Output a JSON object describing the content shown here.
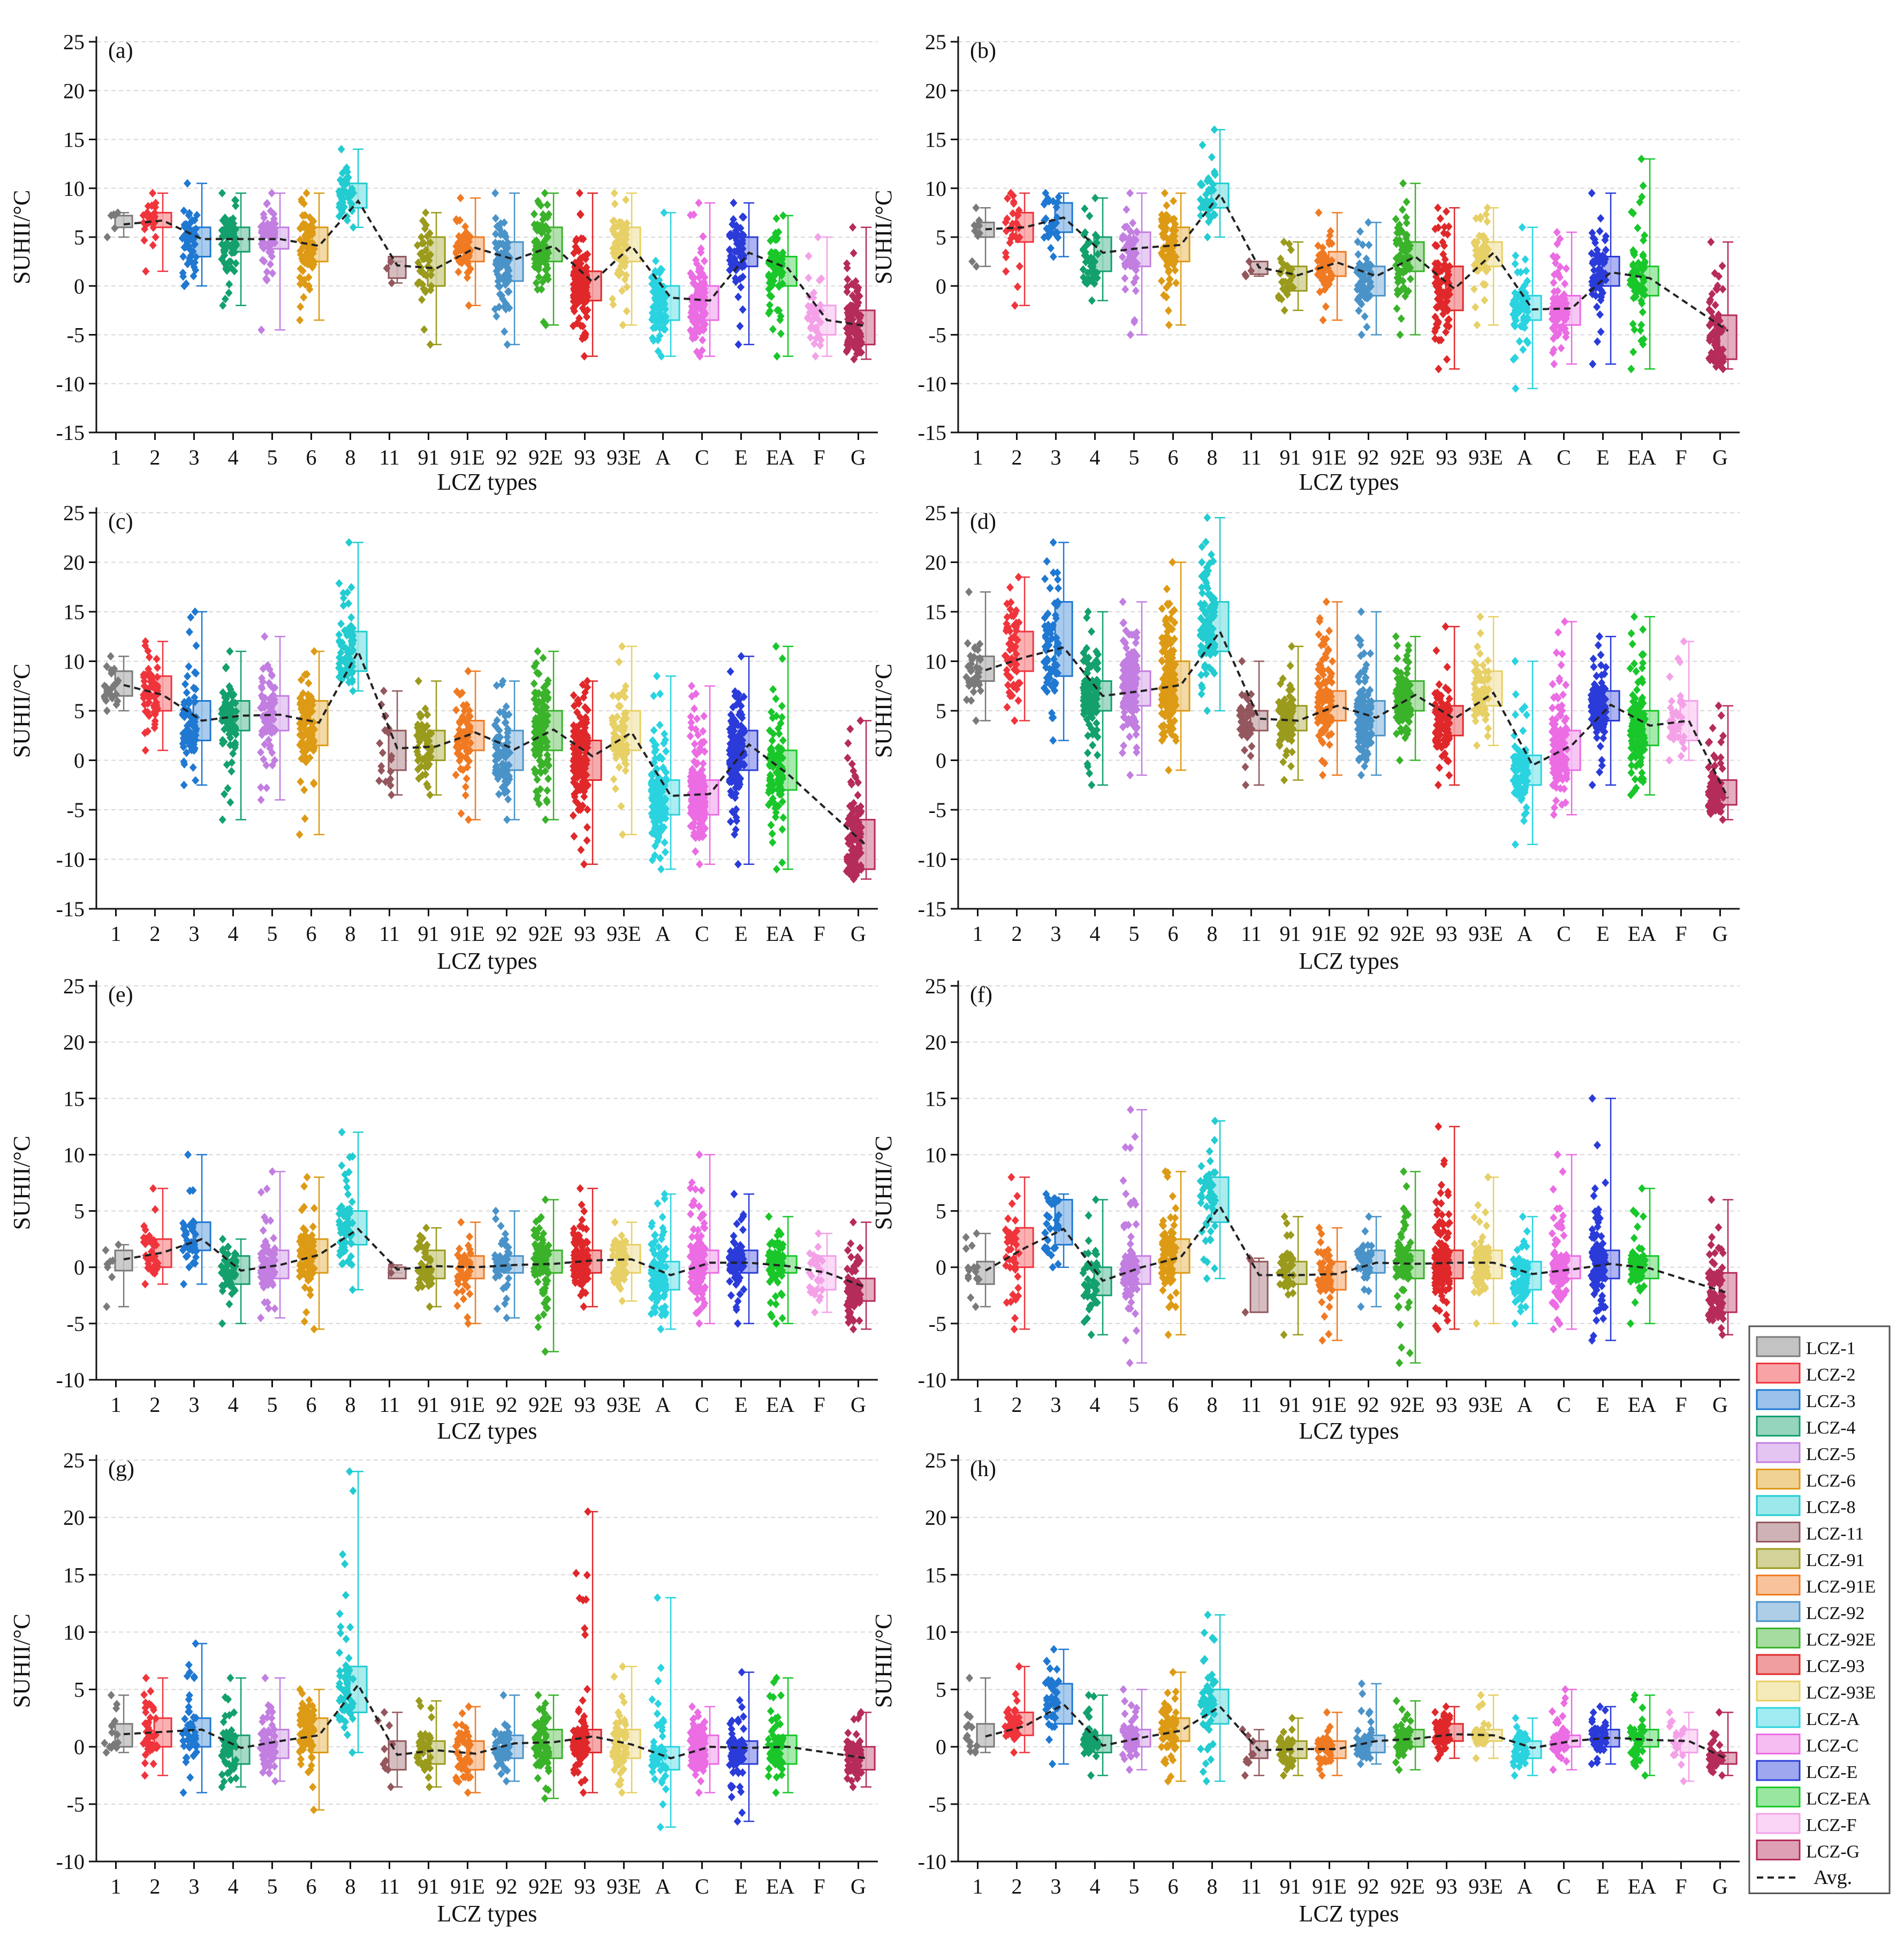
{
  "figure": {
    "y_axis_label": "SUHII/°C",
    "x_axis_label": "LCZ types",
    "categories": [
      "1",
      "2",
      "3",
      "4",
      "5",
      "6",
      "8",
      "11",
      "91",
      "91E",
      "92",
      "92E",
      "93",
      "93E",
      "A",
      "C",
      "E",
      "EA",
      "F",
      "G"
    ]
  },
  "colors": {
    "1": "#7a7a7a",
    "2": "#f0343c",
    "3": "#1f78d1",
    "4": "#13a06c",
    "5": "#c27ee0",
    "6": "#dd9a14",
    "8": "#22ccd0",
    "11": "#93575d",
    "91": "#9a9a1c",
    "91E": "#f07a22",
    "92": "#4a93c9",
    "92E": "#3ab22a",
    "93": "#e0282a",
    "93E": "#e7d065",
    "A": "#2ad3e0",
    "C": "#eb6ce3",
    "E": "#2a3bd9",
    "EA": "#19c72a",
    "F": "#f4a1e8",
    "G": "#b52b5a"
  },
  "legend": {
    "items": [
      "LCZ-1",
      "LCZ-2",
      "LCZ-3",
      "LCZ-4",
      "LCZ-5",
      "LCZ-6",
      "LCZ-8",
      "LCZ-11",
      "LCZ-91",
      "LCZ-91E",
      "LCZ-92",
      "LCZ-92E",
      "LCZ-93",
      "LCZ-93E",
      "LCZ-A",
      "LCZ-C",
      "LCZ-E",
      "LCZ-EA",
      "LCZ-F",
      "LCZ-G"
    ],
    "avg_label": "Avg."
  },
  "chart_data": [
    {
      "type": "box-scatter",
      "title": "(a)",
      "ylim": [
        -15,
        25
      ],
      "yticks": [
        -15,
        -10,
        -5,
        0,
        5,
        10,
        15,
        20,
        25
      ],
      "xlabel": "LCZ types",
      "ylabel": "SUHII/°C",
      "avg": [
        6.3,
        6.7,
        4.8,
        4.8,
        4.8,
        4.1,
        8.7,
        2.1,
        1.8,
        3.9,
        2.7,
        4.1,
        0.4,
        4.1,
        -1.2,
        -1.5,
        3.4,
        1.8,
        -3.5,
        -4.1
      ],
      "q1": [
        6.0,
        6.0,
        3.0,
        3.5,
        3.8,
        2.5,
        8.0,
        0.8,
        0.0,
        2.5,
        0.5,
        2.5,
        -1.5,
        2.5,
        -3.5,
        -3.5,
        2.0,
        0.0,
        -5.0,
        -6.0
      ],
      "q3": [
        7.2,
        7.5,
        6.0,
        6.0,
        6.0,
        6.0,
        10.5,
        3.0,
        5.0,
        5.0,
        4.5,
        6.0,
        1.5,
        6.0,
        0.0,
        0.0,
        5.0,
        3.0,
        -2.0,
        -2.5
      ],
      "min": [
        5.0,
        1.5,
        0.0,
        -2.0,
        -4.5,
        -3.5,
        6.0,
        0.3,
        -6.0,
        -2.0,
        -6.0,
        -4.0,
        -7.2,
        -4.0,
        -7.2,
        -7.2,
        -6.0,
        -7.2,
        -7.2,
        -7.5
      ],
      "max": [
        7.5,
        9.5,
        10.5,
        9.5,
        9.5,
        9.5,
        14.0,
        2.5,
        7.5,
        9.0,
        9.5,
        9.5,
        9.5,
        9.5,
        7.5,
        8.5,
        8.5,
        7.2,
        5.0,
        6.0
      ],
      "count": [
        6,
        30,
        60,
        70,
        70,
        80,
        50,
        3,
        40,
        55,
        90,
        90,
        140,
        70,
        90,
        130,
        80,
        70,
        40,
        100
      ]
    },
    {
      "type": "box-scatter",
      "title": "(b)",
      "ylim": [
        -15,
        25
      ],
      "yticks": [
        -15,
        -10,
        -5,
        0,
        5,
        10,
        15,
        20,
        25
      ],
      "xlabel": "LCZ types",
      "ylabel": "SUHII/°C",
      "avg": [
        5.8,
        6.0,
        7.0,
        3.4,
        3.9,
        4.2,
        9.4,
        1.9,
        1.1,
        2.4,
        1.0,
        3.0,
        -0.3,
        3.4,
        -2.4,
        -2.3,
        1.4,
        0.8,
        null,
        -4.6
      ],
      "q1": [
        5.0,
        4.5,
        5.5,
        1.5,
        2.0,
        2.5,
        8.0,
        1.2,
        -0.5,
        1.0,
        -1.0,
        1.5,
        -2.5,
        2.0,
        -3.5,
        -4.0,
        0.0,
        -1.0,
        null,
        -7.5
      ],
      "q3": [
        6.5,
        7.5,
        8.5,
        5.0,
        5.5,
        6.0,
        10.5,
        2.5,
        2.0,
        3.5,
        2.0,
        4.5,
        2.0,
        4.5,
        -1.0,
        -1.0,
        3.0,
        2.0,
        null,
        -3.0
      ],
      "min": [
        2.0,
        -2.0,
        3.0,
        -1.5,
        -5.0,
        -4.0,
        5.0,
        1.0,
        -2.5,
        -3.5,
        -5.0,
        -5.0,
        -8.5,
        -4.0,
        -10.5,
        -8.0,
        -8.0,
        -8.5,
        null,
        -8.5
      ],
      "max": [
        8.0,
        9.5,
        9.5,
        9.0,
        9.5,
        9.5,
        16.0,
        2.5,
        4.5,
        7.5,
        6.5,
        10.5,
        8.0,
        8.0,
        6.0,
        5.5,
        9.5,
        13.0,
        null,
        4.5
      ],
      "count": [
        10,
        30,
        30,
        50,
        60,
        80,
        40,
        4,
        30,
        50,
        60,
        80,
        100,
        60,
        70,
        90,
        70,
        70,
        0,
        70
      ]
    },
    {
      "type": "box-scatter",
      "title": "(c)",
      "ylim": [
        -15,
        25
      ],
      "yticks": [
        -15,
        -10,
        -5,
        0,
        5,
        10,
        15,
        20,
        25
      ],
      "xlabel": "LCZ types",
      "ylabel": "SUHII/°C",
      "avg": [
        7.6,
        6.6,
        4.0,
        4.5,
        4.6,
        3.8,
        11.0,
        1.2,
        1.4,
        2.8,
        1.1,
        3.1,
        0.4,
        2.8,
        -3.6,
        -3.4,
        1.6,
        -1.4,
        null,
        -8.6
      ],
      "q1": [
        6.5,
        5.0,
        2.0,
        3.0,
        3.0,
        1.5,
        9.0,
        -1.0,
        0.0,
        1.0,
        -1.0,
        1.0,
        -2.0,
        1.0,
        -5.5,
        -5.5,
        -1.0,
        -3.0,
        null,
        -11.0
      ],
      "q3": [
        9.0,
        8.5,
        6.0,
        6.0,
        6.5,
        6.0,
        13.0,
        3.0,
        3.0,
        4.0,
        3.0,
        5.0,
        2.0,
        5.0,
        -2.0,
        -2.0,
        3.0,
        1.0,
        null,
        -6.0
      ],
      "min": [
        5.0,
        1.0,
        -2.5,
        -6.0,
        -4.0,
        -7.5,
        7.0,
        -3.5,
        -3.5,
        -6.0,
        -6.0,
        -6.0,
        -10.5,
        -7.5,
        -11.0,
        -10.5,
        -10.5,
        -11.0,
        null,
        -12.0
      ],
      "max": [
        10.5,
        12.0,
        15.0,
        11.0,
        12.5,
        11.0,
        22.0,
        7.0,
        8.0,
        9.0,
        8.0,
        11.0,
        8.0,
        11.5,
        8.5,
        7.5,
        10.5,
        11.5,
        null,
        4.0
      ],
      "count": [
        25,
        60,
        70,
        80,
        90,
        100,
        70,
        20,
        50,
        70,
        80,
        130,
        150,
        80,
        150,
        200,
        160,
        110,
        0,
        120
      ]
    },
    {
      "type": "box-scatter",
      "title": "(d)",
      "ylim": [
        -15,
        25
      ],
      "yticks": [
        -15,
        -10,
        -5,
        0,
        5,
        10,
        15,
        20,
        25
      ],
      "xlabel": "LCZ types",
      "ylabel": "SUHII/°C",
      "avg": [
        9.1,
        10.4,
        11.4,
        6.5,
        7.0,
        7.6,
        13.0,
        4.2,
        4.0,
        5.5,
        4.3,
        6.6,
        4.2,
        6.8,
        -0.5,
        1.5,
        5.6,
        3.5,
        4.0,
        -3.8
      ],
      "q1": [
        8.0,
        9.0,
        8.5,
        5.0,
        5.5,
        5.0,
        11.0,
        3.0,
        3.0,
        4.0,
        2.5,
        5.0,
        2.5,
        5.5,
        -2.5,
        -1.0,
        4.0,
        1.5,
        2.0,
        -4.5
      ],
      "q3": [
        10.5,
        13.0,
        16.0,
        8.0,
        9.0,
        10.0,
        16.0,
        5.0,
        5.5,
        7.0,
        6.0,
        8.0,
        5.5,
        9.0,
        0.5,
        3.0,
        7.0,
        5.0,
        6.0,
        -2.0
      ],
      "min": [
        4.0,
        4.0,
        2.0,
        -2.5,
        -1.5,
        -1.0,
        5.0,
        -2.5,
        -2.0,
        -1.5,
        -1.5,
        0.0,
        -2.5,
        1.5,
        -8.5,
        -5.5,
        -2.5,
        -3.5,
        0.0,
        -6.0
      ],
      "max": [
        17.0,
        18.5,
        22.0,
        15.0,
        16.0,
        20.0,
        24.5,
        10.0,
        11.5,
        16.0,
        15.0,
        12.5,
        13.5,
        14.5,
        10.0,
        14.0,
        12.5,
        14.5,
        12.0,
        5.5
      ],
      "count": [
        40,
        60,
        70,
        140,
        150,
        170,
        120,
        50,
        110,
        130,
        140,
        110,
        110,
        70,
        90,
        130,
        120,
        150,
        40,
        80
      ]
    },
    {
      "type": "box-scatter",
      "title": "(e)",
      "ylim": [
        -10,
        25
      ],
      "yticks": [
        -10,
        -5,
        0,
        5,
        10,
        15,
        20,
        25
      ],
      "xlabel": "LCZ types",
      "ylabel": "SUHII/°C",
      "avg": [
        0.7,
        1.3,
        2.5,
        -0.3,
        0.2,
        1.1,
        3.4,
        -0.2,
        0.1,
        0.0,
        0.2,
        0.3,
        0.6,
        0.7,
        -0.7,
        0.4,
        0.4,
        0.1,
        -0.5,
        -1.8
      ],
      "q1": [
        -0.3,
        0.0,
        1.5,
        -1.5,
        -1.0,
        -0.5,
        2.0,
        -1.0,
        -1.0,
        -1.0,
        -0.5,
        -0.5,
        -0.5,
        -0.5,
        -2.0,
        -0.5,
        -0.5,
        -0.5,
        -2.0,
        -3.0
      ],
      "q3": [
        1.5,
        2.5,
        4.0,
        1.0,
        1.5,
        2.5,
        5.0,
        0.0,
        1.5,
        1.0,
        1.0,
        1.5,
        1.5,
        2.0,
        0.5,
        1.5,
        1.5,
        1.0,
        1.0,
        -1.0
      ],
      "min": [
        -3.5,
        -1.5,
        -1.5,
        -5.0,
        -4.5,
        -5.5,
        -2.0,
        -0.5,
        -3.5,
        -5.0,
        -4.5,
        -7.5,
        -3.5,
        -3.0,
        -5.5,
        -5.0,
        -5.0,
        -5.0,
        -4.0,
        -5.5
      ],
      "max": [
        2.0,
        7.0,
        10.0,
        2.5,
        8.5,
        8.0,
        12.0,
        0.2,
        3.5,
        4.0,
        5.0,
        6.0,
        7.0,
        4.0,
        6.5,
        10.0,
        6.5,
        4.5,
        3.0,
        4.0
      ],
      "count": [
        8,
        40,
        40,
        50,
        80,
        90,
        60,
        2,
        40,
        50,
        60,
        90,
        120,
        60,
        100,
        150,
        90,
        70,
        30,
        80
      ]
    },
    {
      "type": "box-scatter",
      "title": "(f)",
      "ylim": [
        -10,
        25
      ],
      "yticks": [
        -10,
        -5,
        0,
        5,
        10,
        15,
        20,
        25
      ],
      "xlabel": "LCZ types",
      "ylabel": "SUHII/°C",
      "avg": [
        -0.3,
        1.7,
        3.4,
        -1.2,
        0.0,
        0.9,
        5.4,
        -0.7,
        -0.7,
        -0.6,
        0.4,
        0.3,
        0.4,
        0.4,
        -0.6,
        -0.2,
        0.3,
        -0.1,
        null,
        -2.3
      ],
      "q1": [
        -1.5,
        0.0,
        2.0,
        -2.5,
        -1.5,
        -0.5,
        4.0,
        -4.0,
        -1.5,
        -2.0,
        -0.5,
        -1.0,
        -1.0,
        -1.0,
        -2.0,
        -1.0,
        -1.0,
        -1.0,
        null,
        -4.0
      ],
      "q3": [
        0.5,
        3.5,
        6.0,
        0.0,
        1.0,
        2.5,
        8.0,
        0.5,
        0.5,
        0.5,
        1.5,
        1.5,
        1.5,
        1.5,
        0.5,
        1.0,
        1.5,
        1.0,
        null,
        -0.5
      ],
      "min": [
        -3.5,
        -5.5,
        0.0,
        -6.0,
        -8.5,
        -6.0,
        -1.0,
        -4.0,
        -6.0,
        -6.5,
        -3.5,
        -8.5,
        -5.5,
        -5.0,
        -5.0,
        -5.5,
        -6.5,
        -5.0,
        null,
        -6.0
      ],
      "max": [
        3.0,
        8.0,
        6.5,
        6.0,
        14.0,
        8.5,
        13.0,
        0.8,
        4.5,
        3.5,
        4.5,
        8.5,
        12.5,
        8.0,
        4.5,
        10.0,
        15.0,
        7.0,
        null,
        6.0
      ],
      "count": [
        15,
        40,
        30,
        50,
        100,
        90,
        50,
        3,
        40,
        50,
        50,
        90,
        150,
        80,
        80,
        140,
        120,
        60,
        0,
        80
      ]
    },
    {
      "type": "box-scatter",
      "title": "(g)",
      "ylim": [
        -10,
        25
      ],
      "yticks": [
        -10,
        -5,
        0,
        5,
        10,
        15,
        20,
        25
      ],
      "xlabel": "LCZ types",
      "ylabel": "SUHII/°C",
      "avg": [
        1.1,
        1.3,
        1.5,
        -0.1,
        0.5,
        1.0,
        5.4,
        -0.7,
        -0.3,
        -0.6,
        0.3,
        0.4,
        0.9,
        0.2,
        -1.0,
        0.0,
        -0.1,
        0.0,
        null,
        -1.0
      ],
      "q1": [
        0.0,
        0.0,
        0.0,
        -1.5,
        -1.0,
        -0.5,
        3.0,
        -2.0,
        -1.5,
        -2.0,
        -1.0,
        -1.0,
        -0.5,
        -1.0,
        -2.0,
        -1.5,
        -1.5,
        -1.5,
        null,
        -2.0
      ],
      "q3": [
        2.0,
        2.5,
        2.5,
        1.0,
        1.5,
        2.5,
        7.0,
        0.5,
        0.5,
        0.5,
        1.0,
        1.5,
        1.5,
        1.5,
        0.0,
        1.0,
        0.5,
        1.0,
        null,
        0.0
      ],
      "min": [
        -0.5,
        -2.5,
        -4.0,
        -3.5,
        -3.0,
        -5.5,
        -0.5,
        -3.5,
        -3.5,
        -4.0,
        -3.0,
        -4.5,
        -4.0,
        -4.0,
        -7.0,
        -4.0,
        -6.5,
        -4.0,
        null,
        -3.5
      ],
      "max": [
        4.5,
        6.0,
        9.0,
        6.0,
        6.0,
        5.0,
        24.0,
        3.0,
        4.0,
        3.5,
        4.5,
        4.5,
        20.5,
        7.0,
        13.0,
        3.5,
        6.5,
        6.0,
        null,
        3.0
      ],
      "count": [
        15,
        40,
        50,
        60,
        70,
        80,
        60,
        10,
        50,
        50,
        60,
        80,
        100,
        70,
        50,
        120,
        80,
        60,
        0,
        70
      ]
    },
    {
      "type": "box-scatter",
      "title": "(h)",
      "ylim": [
        -10,
        25
      ],
      "yticks": [
        -10,
        -5,
        0,
        5,
        10,
        15,
        20,
        25
      ],
      "xlabel": "LCZ types",
      "ylabel": "SUHII/°C",
      "avg": [
        0.9,
        1.8,
        3.7,
        0.1,
        0.8,
        1.4,
        3.5,
        -0.3,
        -0.2,
        -0.2,
        0.5,
        0.7,
        1.1,
        1.0,
        -0.1,
        0.5,
        0.8,
        0.6,
        0.5,
        -1.1
      ],
      "q1": [
        0.0,
        1.0,
        2.0,
        -0.5,
        0.0,
        0.5,
        2.0,
        -1.0,
        -1.0,
        -1.0,
        -0.5,
        0.0,
        0.5,
        0.5,
        -1.0,
        0.0,
        0.0,
        0.0,
        -0.5,
        -1.5
      ],
      "q3": [
        2.0,
        3.0,
        5.5,
        1.0,
        1.5,
        2.5,
        5.0,
        0.5,
        0.5,
        0.5,
        1.0,
        1.5,
        2.0,
        1.5,
        0.5,
        1.0,
        1.5,
        1.5,
        1.5,
        -0.5
      ],
      "min": [
        -0.5,
        -0.5,
        -1.5,
        -2.5,
        -2.0,
        -3.0,
        -3.0,
        -2.5,
        -2.5,
        -2.5,
        -1.5,
        -2.0,
        -1.0,
        -1.0,
        -2.5,
        -2.0,
        -1.5,
        -2.5,
        -3.0,
        -2.5
      ],
      "max": [
        6.0,
        7.0,
        8.5,
        4.5,
        5.0,
        6.5,
        11.5,
        1.5,
        2.5,
        3.0,
        5.5,
        4.0,
        3.5,
        4.5,
        2.5,
        5.0,
        3.5,
        4.5,
        3.0,
        3.0
      ],
      "count": [
        15,
        40,
        40,
        50,
        60,
        80,
        60,
        10,
        40,
        50,
        50,
        60,
        70,
        40,
        50,
        70,
        50,
        50,
        20,
        40
      ]
    }
  ]
}
